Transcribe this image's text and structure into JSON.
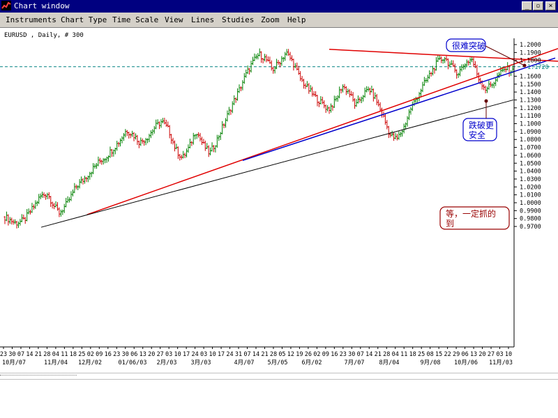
{
  "window": {
    "title": "Chart window",
    "controls": [
      "_",
      "▫",
      "×"
    ]
  },
  "menu": [
    "Instruments",
    "Chart Type",
    "Time Scale",
    "View",
    "Lines",
    "Studies",
    "Zoom",
    "Help"
  ],
  "chart_data": {
    "type": "ohlc",
    "header": "EURUSD , Daily, # 300",
    "ylim": [
      0.96,
      1.21
    ],
    "yticks": [
      "1.2000",
      "1.1900",
      "1.1800",
      "1.1720",
      "1.1600",
      "1.1500",
      "1.1400",
      "1.1300",
      "1.1200",
      "1.1100",
      "1.1000",
      "1.0900",
      "1.0800",
      "1.0700",
      "1.0600",
      "1.0500",
      "1.0400",
      "1.0300",
      "1.0200",
      "1.0100",
      "1.0000",
      "0.9900",
      "0.9800",
      "0.9700"
    ],
    "highlight_level": "1.1720",
    "xticks": [
      "23",
      "30",
      "07",
      "14",
      "21",
      "28",
      "04",
      "11",
      "18",
      "25",
      "02",
      "09",
      "16",
      "23",
      "30",
      "06",
      "13",
      "20",
      "27",
      "03",
      "10",
      "17",
      "24",
      "03",
      "10",
      "17",
      "24",
      "31",
      "07",
      "14",
      "21",
      "28",
      "05",
      "12",
      "19",
      "26",
      "02",
      "09",
      "16",
      "23",
      "30",
      "07",
      "14",
      "21",
      "28",
      "04",
      "11",
      "18",
      "25",
      "08",
      "15",
      "22",
      "29",
      "06",
      "13",
      "20",
      "27",
      "03",
      "10"
    ],
    "month_labels": [
      "10月/07",
      "11月/04",
      "12月/02",
      "01/06/03",
      "2月/03",
      "3月/03",
      "4月/07",
      "5月/05",
      "6月/02",
      "7月/07",
      "8月/04",
      "9月/08",
      "10月/06",
      "11月/03"
    ],
    "price_path": [
      [
        0,
        0.982
      ],
      [
        8,
        0.974
      ],
      [
        14,
        0.978
      ],
      [
        20,
        0.992
      ],
      [
        26,
        1.008
      ],
      [
        31,
        1.012
      ],
      [
        36,
        0.996
      ],
      [
        40,
        0.987
      ],
      [
        46,
        1.0
      ],
      [
        52,
        1.02
      ],
      [
        58,
        1.03
      ],
      [
        63,
        1.04
      ],
      [
        69,
        1.052
      ],
      [
        74,
        1.058
      ],
      [
        79,
        1.068
      ],
      [
        84,
        1.078
      ],
      [
        89,
        1.092
      ],
      [
        94,
        1.086
      ],
      [
        99,
        1.076
      ],
      [
        105,
        1.084
      ],
      [
        110,
        1.096
      ],
      [
        115,
        1.103
      ],
      [
        120,
        1.092
      ],
      [
        125,
        1.068
      ],
      [
        130,
        1.056
      ],
      [
        135,
        1.07
      ],
      [
        140,
        1.092
      ],
      [
        145,
        1.074
      ],
      [
        150,
        1.062
      ],
      [
        155,
        1.078
      ],
      [
        160,
        1.098
      ],
      [
        166,
        1.122
      ],
      [
        171,
        1.14
      ],
      [
        176,
        1.16
      ],
      [
        181,
        1.176
      ],
      [
        186,
        1.188
      ],
      [
        191,
        1.182
      ],
      [
        196,
        1.168
      ],
      [
        201,
        1.178
      ],
      [
        206,
        1.19
      ],
      [
        211,
        1.178
      ],
      [
        216,
        1.158
      ],
      [
        222,
        1.144
      ],
      [
        227,
        1.134
      ],
      [
        232,
        1.126
      ],
      [
        237,
        1.118
      ],
      [
        242,
        1.128
      ],
      [
        247,
        1.148
      ],
      [
        252,
        1.14
      ],
      [
        257,
        1.122
      ],
      [
        262,
        1.136
      ],
      [
        267,
        1.144
      ],
      [
        272,
        1.13
      ],
      [
        277,
        1.11
      ],
      [
        282,
        1.086
      ],
      [
        287,
        1.08
      ],
      [
        292,
        1.094
      ],
      [
        297,
        1.118
      ],
      [
        302,
        1.134
      ],
      [
        307,
        1.15
      ],
      [
        312,
        1.164
      ],
      [
        317,
        1.178
      ],
      [
        322,
        1.184
      ],
      [
        327,
        1.172
      ],
      [
        332,
        1.164
      ],
      [
        337,
        1.176
      ],
      [
        342,
        1.182
      ],
      [
        347,
        1.158
      ],
      [
        352,
        1.144
      ],
      [
        357,
        1.15
      ],
      [
        362,
        1.162
      ],
      [
        367,
        1.17
      ],
      [
        372,
        1.166
      ]
    ],
    "trendlines": [
      {
        "name": "red-support",
        "color": "#e00000",
        "x0": 125,
        "y0": 0.985,
        "x1": 800,
        "y1": 1.195
      },
      {
        "name": "blue-support",
        "color": "#0000cc",
        "x0": 348,
        "y0": 1.0535,
        "x1": 796,
        "y1": 1.183
      },
      {
        "name": "black-support",
        "color": "#000000",
        "x0": 59,
        "y0": 0.969,
        "x1": 736,
        "y1": 1.13
      },
      {
        "name": "red-resistance",
        "color": "#e00000",
        "x0": 472,
        "y0": 1.194,
        "x1": 800,
        "y1": 1.179
      }
    ],
    "annotations": [
      {
        "name": "hard-to-break",
        "lines": [
          "很难突破"
        ],
        "color": "#0000cc"
      },
      {
        "name": "break-safer",
        "lines": [
          "跌破更",
          "安全"
        ],
        "color": "#0000cc"
      },
      {
        "name": "wait",
        "lines": [
          "等，一定抓的",
          "到"
        ],
        "color": "#990000"
      }
    ],
    "colors": {
      "up": "#008000",
      "down": "#cc0000",
      "grid": "#008080",
      "axis": "#000000"
    }
  }
}
